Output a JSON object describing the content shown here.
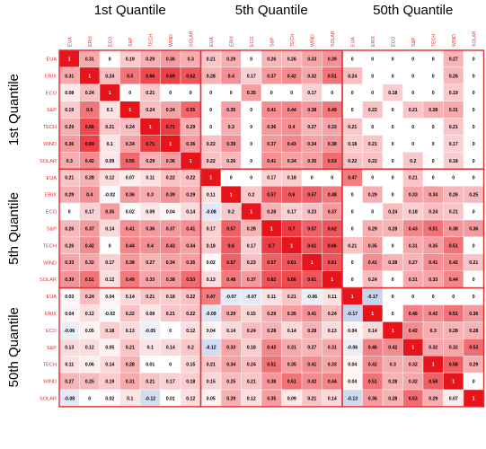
{
  "chart_data": {
    "type": "heatmap",
    "group_titles": [
      "1st Quantile",
      "5th Quantile",
      "50th Quantile"
    ],
    "variables": [
      "EUA",
      "ERIX",
      "ECO",
      "S&P",
      "TECH",
      "WIND",
      "SOLAR"
    ],
    "row_labels": [
      "EUA",
      "ERIX",
      "ECO",
      "S&P",
      "TECH",
      "WIND",
      "SOLAR",
      "EUA",
      "ERIX",
      "ECO",
      "S&P",
      "TECH",
      "WIND",
      "SOLAR",
      "EUA",
      "ERIX",
      "ECO",
      "S&P",
      "TECH",
      "WIND",
      "SOLAR"
    ],
    "col_labels": [
      "EUA",
      "ERIX",
      "ECO",
      "S&P",
      "TECH",
      "WIND",
      "SOLAR",
      "EUA",
      "ERIX",
      "ECO",
      "S&P",
      "TECH",
      "WIND",
      "SOLAR",
      "EUA",
      "ERIX",
      "ECO",
      "S&P",
      "TECH",
      "WIND",
      "SOLAR"
    ],
    "values": [
      [
        1,
        0.31,
        0,
        0.19,
        0.29,
        0.36,
        0.3,
        0.21,
        0.29,
        0,
        0.26,
        0.26,
        0.33,
        0.39,
        0,
        0,
        0,
        0,
        0,
        0.27,
        0
      ],
      [
        0.31,
        1,
        0.24,
        0.5,
        0.66,
        0.69,
        0.62,
        0.28,
        0.4,
        0.17,
        0.37,
        0.42,
        0.32,
        0.51,
        0.24,
        0,
        0,
        0,
        0,
        0.26,
        0
      ],
      [
        0.08,
        0.24,
        1,
        0,
        0.21,
        0,
        0,
        0,
        0,
        0.35,
        0,
        0,
        0.17,
        0,
        0,
        0,
        0.18,
        0,
        0,
        0.19,
        0
      ],
      [
        0.19,
        0.5,
        0.1,
        1,
        0.24,
        0.34,
        0.55,
        0,
        0.35,
        0,
        0.41,
        0.44,
        0.38,
        0.49,
        0,
        0.22,
        0,
        0.21,
        0.28,
        0.31,
        0
      ],
      [
        0.29,
        0.66,
        0.21,
        0.24,
        1,
        0.71,
        0.29,
        0,
        0.3,
        0,
        0.36,
        0.4,
        0.27,
        0.33,
        0.21,
        0,
        0,
        0,
        0,
        0.21,
        0
      ],
      [
        0.36,
        0.69,
        0.1,
        0.34,
        0.71,
        1,
        0.36,
        0.22,
        0.39,
        0,
        0.37,
        0.43,
        0.34,
        0.38,
        0.18,
        0.21,
        0,
        0,
        0,
        0.17,
        0
      ],
      [
        0.3,
        0.42,
        0.09,
        0.55,
        0.29,
        0.36,
        1,
        0.22,
        0.26,
        0,
        0.41,
        0.34,
        0.35,
        0.53,
        0.22,
        0.22,
        0,
        0.2,
        0,
        0.18,
        0
      ],
      [
        0.21,
        0.28,
        0.12,
        0.07,
        0.11,
        0.22,
        0.22,
        1,
        0,
        0,
        0.17,
        0.18,
        0,
        0,
        0.47,
        0,
        0,
        0.21,
        0,
        0,
        0
      ],
      [
        0.29,
        0.4,
        -0.02,
        0.36,
        0.3,
        0.39,
        0.29,
        0.11,
        1,
        0.2,
        0.57,
        0.6,
        0.57,
        0.48,
        0,
        0.29,
        0,
        0.33,
        0.34,
        0.26,
        0.25
      ],
      [
        0,
        0.17,
        0.35,
        0.02,
        0.09,
        0.04,
        0.14,
        -0.08,
        0.2,
        1,
        0.28,
        0.17,
        0.23,
        0.37,
        0,
        0,
        0.24,
        0.18,
        0.24,
        0.21,
        0
      ],
      [
        0.26,
        0.37,
        0.14,
        0.41,
        0.36,
        0.37,
        0.41,
        0.17,
        0.57,
        0.28,
        1,
        0.7,
        0.57,
        0.62,
        0,
        0.29,
        0.28,
        0.43,
        0.51,
        0.38,
        0.36
      ],
      [
        0.26,
        0.42,
        0,
        0.44,
        0.4,
        0.43,
        0.34,
        0.18,
        0.6,
        0.17,
        0.7,
        1,
        0.61,
        0.66,
        0.21,
        0.35,
        0,
        0.31,
        0.35,
        0.51,
        0
      ],
      [
        0.33,
        0.32,
        0.17,
        0.38,
        0.27,
        0.34,
        0.35,
        0.02,
        0.57,
        0.23,
        0.57,
        0.61,
        1,
        0.61,
        0,
        0.41,
        0.28,
        0.27,
        0.41,
        0.42,
        0.21
      ],
      [
        0.39,
        0.51,
        0.12,
        0.49,
        0.33,
        0.38,
        0.53,
        0.13,
        0.48,
        0.37,
        0.62,
        0.66,
        0.61,
        1,
        0,
        0.24,
        0,
        0.31,
        0.33,
        0.44,
        0
      ],
      [
        0.03,
        0.24,
        0.04,
        0.14,
        0.21,
        0.18,
        0.22,
        0.47,
        -0.07,
        -0.07,
        0.11,
        0.21,
        -0.06,
        0.11,
        1,
        -0.17,
        0,
        0,
        0,
        0,
        0
      ],
      [
        0.04,
        0.12,
        -0.02,
        0.22,
        0.09,
        0.21,
        0.22,
        -0.09,
        0.29,
        0.15,
        0.29,
        0.35,
        0.41,
        0.24,
        -0.17,
        1,
        0,
        0.46,
        0.42,
        0.51,
        0.36
      ],
      [
        -0.06,
        0.05,
        0.18,
        0.13,
        -0.05,
        0,
        0.12,
        0.04,
        0.14,
        0.24,
        0.28,
        0.14,
        0.28,
        0.13,
        0.04,
        0.14,
        1,
        0.42,
        0.3,
        0.28,
        0.28
      ],
      [
        0.13,
        0.12,
        0.05,
        0.21,
        0.1,
        0.14,
        0.2,
        -0.12,
        0.33,
        0.18,
        0.43,
        0.31,
        0.27,
        0.31,
        -0.06,
        0.46,
        0.42,
        1,
        0.32,
        0.32,
        0.53
      ],
      [
        0.11,
        0.06,
        0.14,
        0.28,
        0.01,
        0,
        0.15,
        0.21,
        0.34,
        0.24,
        0.51,
        0.35,
        0.41,
        0.33,
        0.04,
        0.42,
        0.3,
        0.32,
        1,
        0.58,
        0.29
      ],
      [
        0.27,
        0.25,
        0.19,
        0.31,
        0.21,
        0.17,
        0.18,
        0.15,
        0.25,
        0.21,
        0.38,
        0.51,
        0.42,
        0.44,
        0.04,
        0.51,
        0.28,
        0.32,
        0.58,
        1,
        0
      ],
      [
        -0.08,
        0,
        0.02,
        0.1,
        -0.12,
        0.01,
        0.12,
        0.05,
        0.29,
        0.12,
        0.35,
        0.09,
        0.21,
        0.14,
        -0.13,
        0.36,
        0.28,
        0.53,
        0.29,
        0.07,
        1
      ]
    ],
    "color_scale": {
      "negative": "#c8d4ec",
      "zero": "#ffffff",
      "positive": "#e8141c",
      "diagonal": "#e8141c"
    },
    "label_color": "#e03030",
    "border_color": "#e03030"
  }
}
